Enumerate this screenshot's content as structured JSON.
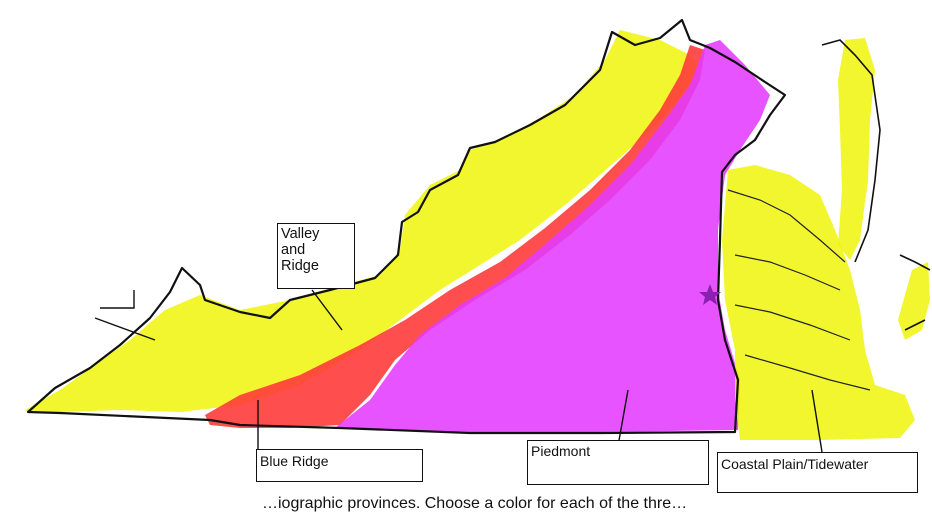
{
  "colors": {
    "valley_and_ridge": "#eef50a",
    "blue_ridge": "#ff3b3b",
    "piedmont": "#e23bff",
    "coastal_plain": "#eef50a",
    "outline": "#111111",
    "capital_star": "#8a1fb0"
  },
  "labels": {
    "valley_and_ridge": "Valley\nand\nRidge",
    "blue_ridge": "Blue Ridge",
    "piedmont": "Piedmont",
    "coastal_plain": "Coastal Plain/Tidewater"
  },
  "caption": "…iographic provinces. Choose a color for each of the thre…",
  "icons": {
    "capital": "star-icon"
  }
}
